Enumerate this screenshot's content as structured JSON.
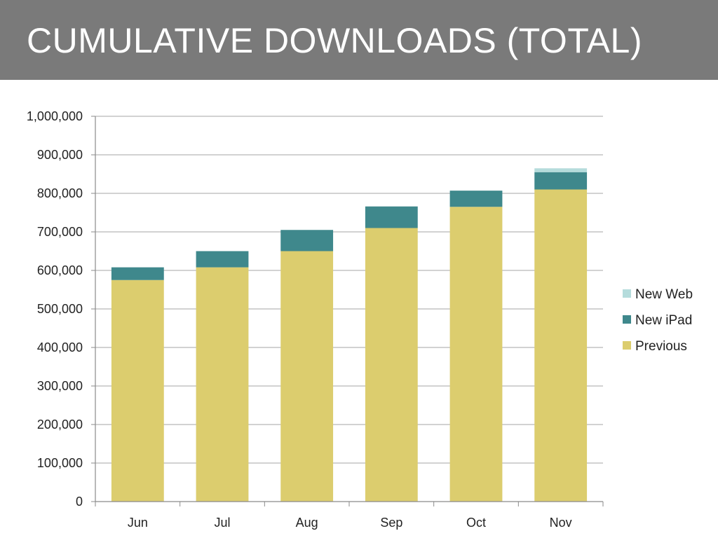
{
  "slide": {
    "title": "CUMULATIVE DOWNLOADS (TOTAL)"
  },
  "chart_data": {
    "type": "bar",
    "stacked": true,
    "categories": [
      "Jun",
      "Jul",
      "Aug",
      "Sep",
      "Oct",
      "Nov"
    ],
    "series": [
      {
        "name": "Previous",
        "color": "#dccd6e",
        "values": [
          575000,
          608000,
          650000,
          710000,
          765000,
          810000
        ]
      },
      {
        "name": "New iPad",
        "color": "#3f888c",
        "values": [
          33000,
          42000,
          55000,
          56000,
          42000,
          45000
        ]
      },
      {
        "name": "New Web",
        "color": "#b5dcdc",
        "values": [
          0,
          0,
          0,
          0,
          0,
          10000
        ]
      }
    ],
    "yticks": [
      "0",
      "100,000",
      "200,000",
      "300,000",
      "400,000",
      "500,000",
      "600,000",
      "700,000",
      "800,000",
      "900,000",
      "1,000,000"
    ],
    "ylim": [
      0,
      1000000
    ],
    "grid": true,
    "legend": {
      "position": "right",
      "order": [
        "New Web",
        "New iPad",
        "Previous"
      ]
    },
    "xlabel": "",
    "ylabel": ""
  }
}
